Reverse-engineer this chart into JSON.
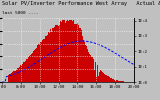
{
  "title": "Solar PV/Inverter Performance West Array   Actual & Running Avg Power Output",
  "subtitle": "last 5000 ----",
  "bg_color": "#c0c0c0",
  "plot_bg": "#c0c0c0",
  "bar_color": "#cc0000",
  "line_color": "#0000ff",
  "grid_color": "#ffffff",
  "ylim": [
    0,
    5
  ],
  "num_bars": 130,
  "title_fontsize": 3.8,
  "subtitle_fontsize": 3.2,
  "tick_fontsize": 3.0,
  "right_tick_labels": [
    "IE:4",
    "IE:3",
    "IE:2",
    "IE:1",
    "IE:0"
  ],
  "right_tick_vals": [
    4.8,
    3.6,
    2.4,
    1.2,
    0.0
  ],
  "x_labels": [
    "6:00",
    "8:00",
    "10:00",
    "12:00",
    "14:00",
    "16:00",
    "18:00",
    "20:00"
  ],
  "peak_value": 4.85
}
